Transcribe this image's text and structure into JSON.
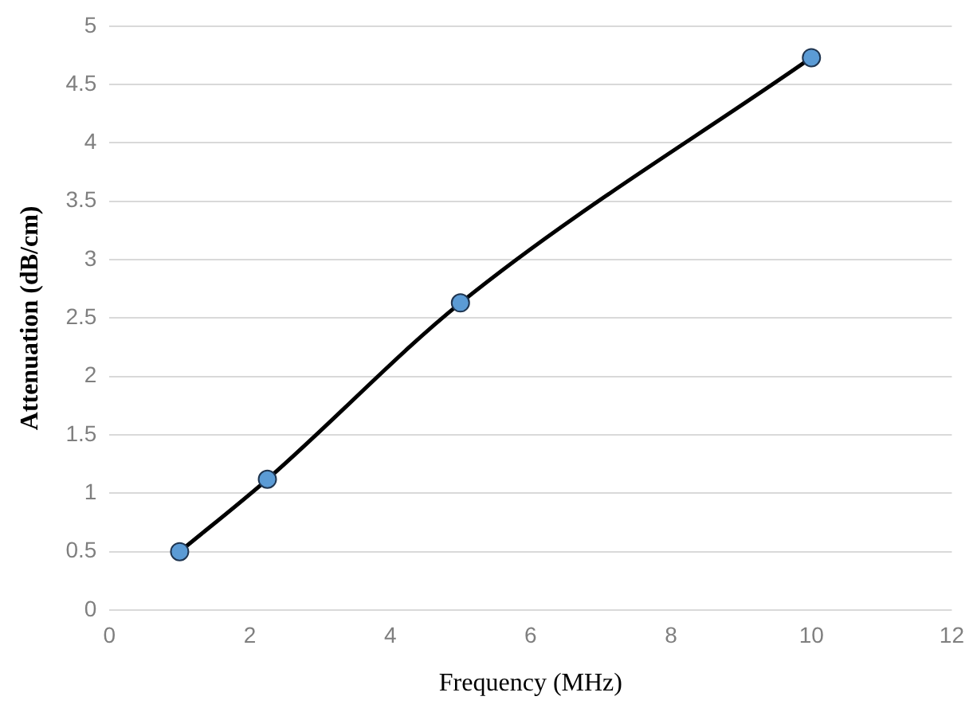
{
  "chart_data": {
    "type": "line",
    "xlabel": "Frequency (MHz)",
    "ylabel": "Attenuation (dB/cm)",
    "x": [
      1,
      2.25,
      5,
      10
    ],
    "series": [
      {
        "color": "#000000",
        "values": [
          0.5,
          1.12,
          2.63,
          4.73
        ]
      }
    ],
    "xlim": [
      0,
      12
    ],
    "xticks": [
      0,
      2,
      4,
      6,
      8,
      10,
      12
    ],
    "ylim": [
      0,
      5
    ],
    "yticks": [
      0,
      0.5,
      1,
      1.5,
      2,
      2.5,
      3,
      3.5,
      4,
      4.5,
      5
    ],
    "grid": "y",
    "legend": false,
    "marker": "circle"
  }
}
